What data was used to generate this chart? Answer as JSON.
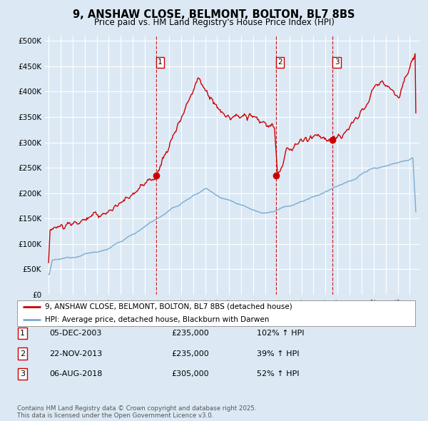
{
  "title": "9, ANSHAW CLOSE, BELMONT, BOLTON, BL7 8BS",
  "subtitle": "Price paid vs. HM Land Registry's House Price Index (HPI)",
  "background_color": "#dce9f5",
  "plot_bg_color": "#dce9f5",
  "ylim": [
    0,
    500000
  ],
  "yticks": [
    0,
    50000,
    100000,
    150000,
    200000,
    250000,
    300000,
    350000,
    400000,
    450000,
    500000
  ],
  "ytick_labels": [
    "£0",
    "£50K",
    "£100K",
    "£150K",
    "£200K",
    "£250K",
    "£300K",
    "£350K",
    "£400K",
    "£450K",
    "£500K"
  ],
  "sale_prices": [
    235000,
    235000,
    305000
  ],
  "sale_labels": [
    "1",
    "2",
    "3"
  ],
  "sale_pct": [
    "102% ↑ HPI",
    "39% ↑ HPI",
    "52% ↑ HPI"
  ],
  "sale_date_strs": [
    "05-DEC-2003",
    "22-NOV-2013",
    "06-AUG-2018"
  ],
  "legend_line1": "9, ANSHAW CLOSE, BELMONT, BOLTON, BL7 8BS (detached house)",
  "legend_line2": "HPI: Average price, detached house, Blackburn with Darwen",
  "footnote": "Contains HM Land Registry data © Crown copyright and database right 2025.\nThis data is licensed under the Open Government Licence v3.0.",
  "red_line_color": "#cc0000",
  "blue_line_color": "#7aabcf",
  "grid_color": "#ffffff",
  "vline_color": "#cc0000",
  "sale_year_floats": [
    2003.917,
    2013.875,
    2018.583
  ]
}
